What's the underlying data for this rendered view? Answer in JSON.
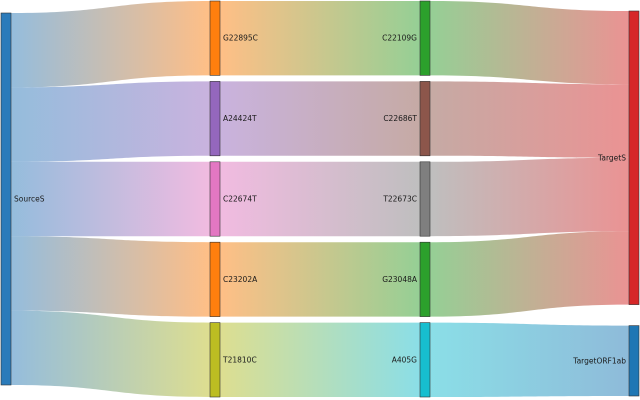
{
  "diagram": {
    "type": "sankey",
    "columns": [
      [
        {
          "id": "SourceS",
          "label": "SourceS",
          "color": "#2b7bba"
        }
      ],
      [
        {
          "id": "G22895C",
          "label": "G22895C",
          "color": "#ff7f0e"
        },
        {
          "id": "A24424T",
          "label": "A24424T",
          "color": "#9467bd"
        },
        {
          "id": "C22674T",
          "label": "C22674T",
          "color": "#e377c2"
        },
        {
          "id": "C23202A",
          "label": "C23202A",
          "color": "#ff7f0e"
        },
        {
          "id": "T21810C",
          "label": "T21810C",
          "color": "#bcbd22"
        }
      ],
      [
        {
          "id": "C22109G",
          "label": "C22109G",
          "color": "#2ca02c"
        },
        {
          "id": "C22686T",
          "label": "C22686T",
          "color": "#8c564b"
        },
        {
          "id": "T22673C",
          "label": "T22673C",
          "color": "#7f7f7f"
        },
        {
          "id": "G23048A",
          "label": "G23048A",
          "color": "#2ca02c"
        },
        {
          "id": "A405G",
          "label": "A405G",
          "color": "#17becf"
        }
      ],
      [
        {
          "id": "TargetS",
          "label": "TargetS",
          "color": "#d62728"
        },
        {
          "id": "TargetORF1ab",
          "label": "TargetORF1ab",
          "color": "#1f77b4"
        }
      ]
    ],
    "links": [
      {
        "source": "SourceS",
        "target": "G22895C",
        "value": 1
      },
      {
        "source": "SourceS",
        "target": "A24424T",
        "value": 1
      },
      {
        "source": "SourceS",
        "target": "C22674T",
        "value": 1
      },
      {
        "source": "SourceS",
        "target": "C23202A",
        "value": 1
      },
      {
        "source": "SourceS",
        "target": "T21810C",
        "value": 1
      },
      {
        "source": "G22895C",
        "target": "C22109G",
        "value": 1
      },
      {
        "source": "A24424T",
        "target": "C22686T",
        "value": 1
      },
      {
        "source": "C22674T",
        "target": "T22673C",
        "value": 1
      },
      {
        "source": "C23202A",
        "target": "G23048A",
        "value": 1
      },
      {
        "source": "T21810C",
        "target": "A405G",
        "value": 1
      },
      {
        "source": "C22109G",
        "target": "TargetS",
        "value": 1
      },
      {
        "source": "C22686T",
        "target": "TargetS",
        "value": 1
      },
      {
        "source": "T22673C",
        "target": "TargetS",
        "value": 1
      },
      {
        "source": "G23048A",
        "target": "TargetS",
        "value": 1
      },
      {
        "source": "A405G",
        "target": "TargetORF1ab",
        "value": 1
      }
    ]
  }
}
